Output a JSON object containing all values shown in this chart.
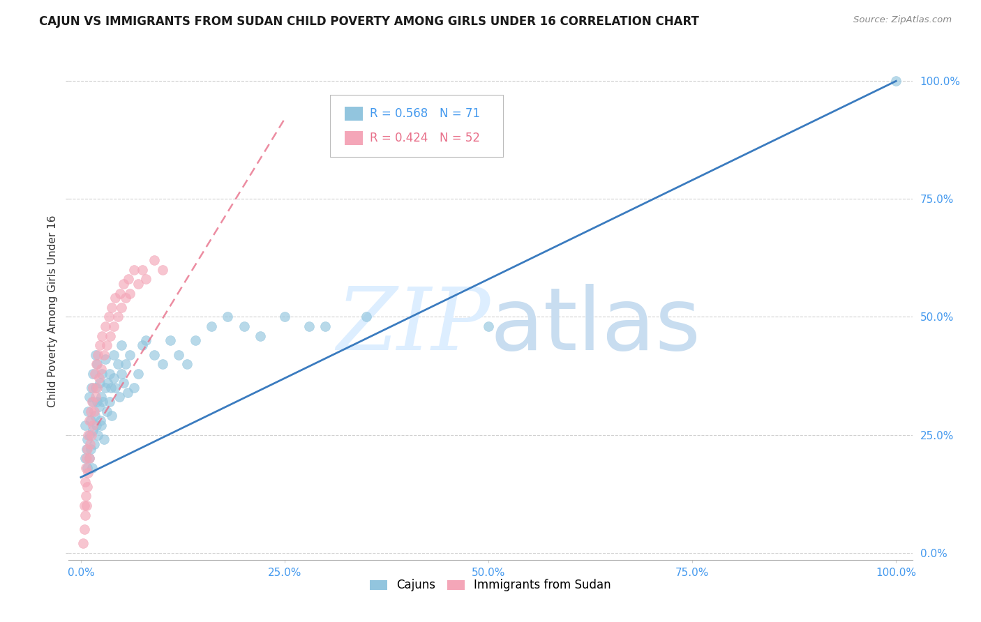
{
  "title": "CAJUN VS IMMIGRANTS FROM SUDAN CHILD POVERTY AMONG GIRLS UNDER 16 CORRELATION CHART",
  "source": "Source: ZipAtlas.com",
  "ylabel": "Child Poverty Among Girls Under 16",
  "cajun_R": 0.568,
  "cajun_N": 71,
  "sudan_R": 0.424,
  "sudan_N": 52,
  "cajun_color": "#92c5de",
  "sudan_color": "#f4a6b8",
  "cajun_line_color": "#3a7bbf",
  "sudan_line_color": "#e8708a",
  "watermark_zip": "ZIP",
  "watermark_atlas": "atlas",
  "watermark_color": "#ddeeff",
  "background_color": "#ffffff",
  "xticks": [
    0.0,
    0.25,
    0.5,
    0.75,
    1.0
  ],
  "yticks": [
    0.0,
    0.25,
    0.5,
    0.75,
    1.0
  ],
  "xticklabels": [
    "0.0%",
    "25.0%",
    "50.0%",
    "75.0%",
    "100.0%"
  ],
  "yticklabels": [
    "0.0%",
    "25.0%",
    "50.0%",
    "75.0%",
    "100.0%"
  ],
  "cajun_line_x0": 0.0,
  "cajun_line_y0": 0.16,
  "cajun_line_x1": 1.0,
  "cajun_line_y1": 1.0,
  "sudan_line_x0": 0.02,
  "sudan_line_y0": 0.27,
  "sudan_line_x1": 0.25,
  "sudan_line_y1": 0.92
}
